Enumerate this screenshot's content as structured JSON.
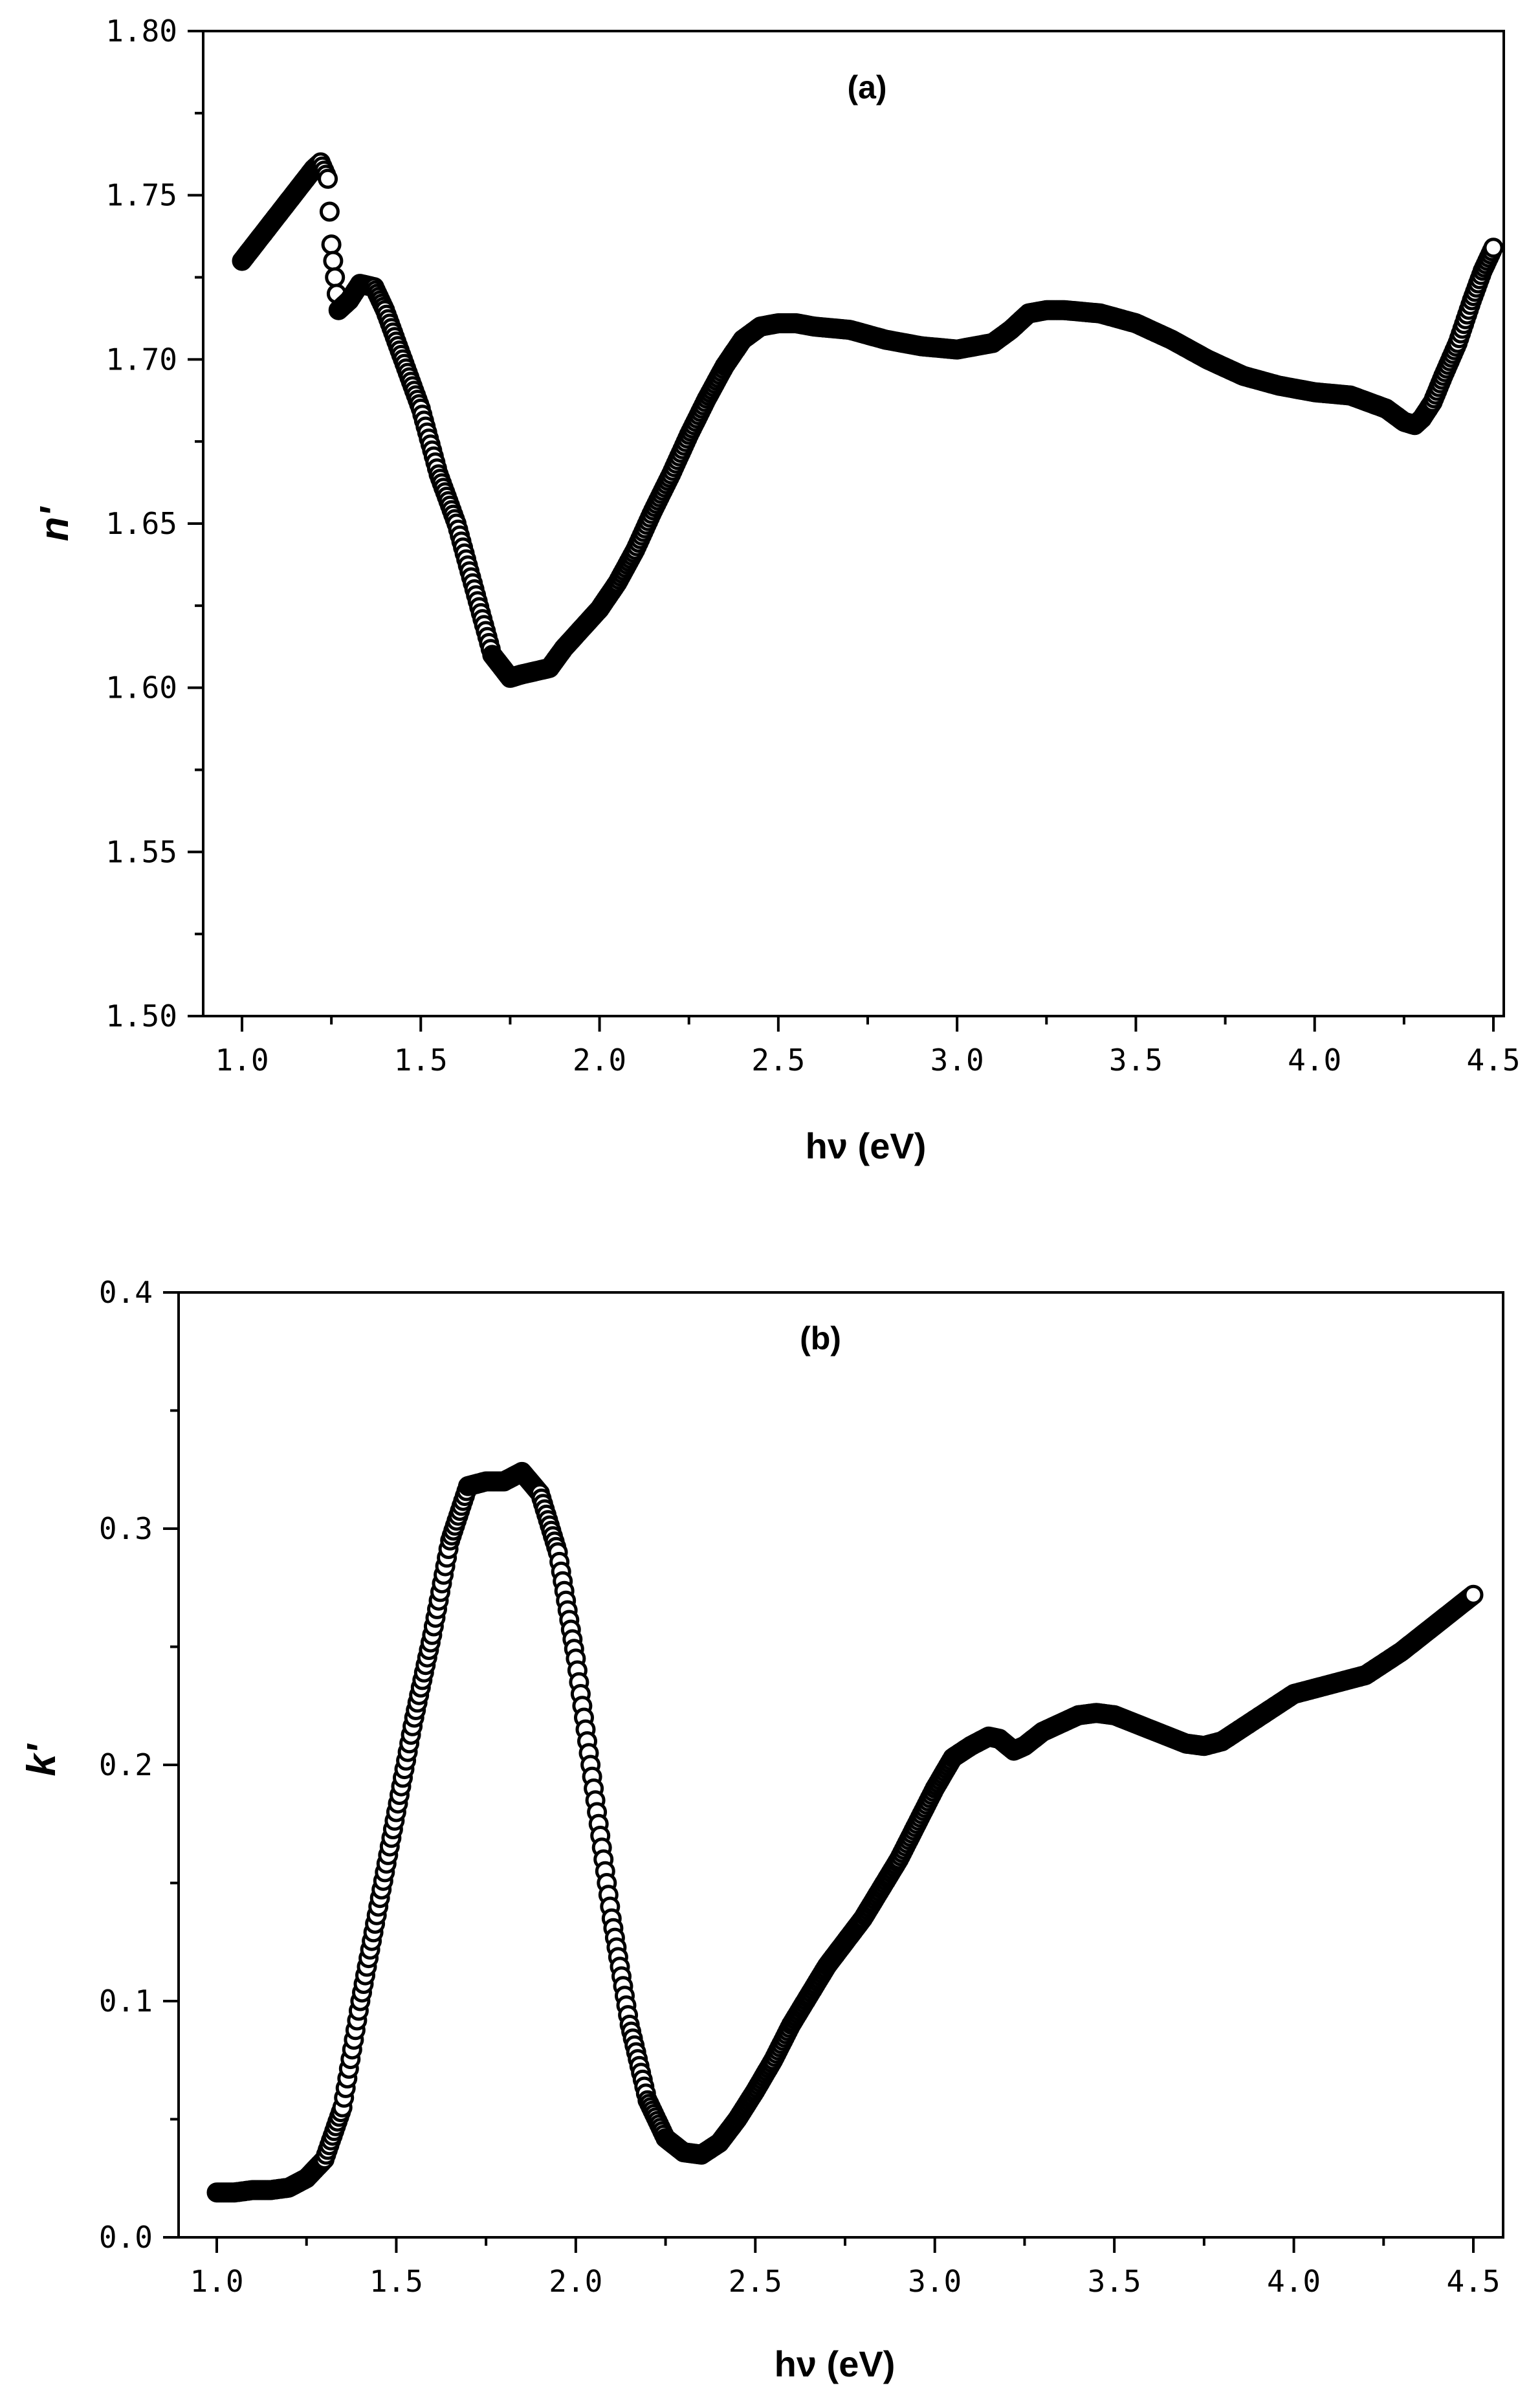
{
  "chart_data": [
    {
      "type": "scatter",
      "panel_label": "(a)",
      "xlabel": "hν (eV)",
      "ylabel": "n'",
      "xlim": [
        0.9,
        4.55
      ],
      "ylim": [
        1.5,
        1.8
      ],
      "xticks": [
        "1.0",
        "1.5",
        "2.0",
        "2.5",
        "3.0",
        "3.5",
        "4.0",
        "4.5"
      ],
      "yticks": [
        "1.50",
        "1.55",
        "1.60",
        "1.65",
        "1.70",
        "1.75",
        "1.80"
      ],
      "grid": false,
      "legend": "none",
      "x": [
        1.0,
        1.05,
        1.1,
        1.15,
        1.2,
        1.22,
        1.24,
        1.25,
        1.27,
        1.3,
        1.33,
        1.37,
        1.4,
        1.45,
        1.5,
        1.55,
        1.6,
        1.65,
        1.7,
        1.75,
        1.78,
        1.82,
        1.86,
        1.9,
        1.95,
        2.0,
        2.05,
        2.1,
        2.15,
        2.2,
        2.25,
        2.3,
        2.35,
        2.4,
        2.45,
        2.5,
        2.55,
        2.6,
        2.7,
        2.8,
        2.9,
        3.0,
        3.1,
        3.15,
        3.2,
        3.25,
        3.3,
        3.4,
        3.5,
        3.6,
        3.7,
        3.8,
        3.9,
        4.0,
        4.1,
        4.15,
        4.2,
        4.25,
        4.28,
        4.3,
        4.33,
        4.36,
        4.4,
        4.44,
        4.47,
        4.5
      ],
      "y": [
        1.73,
        1.737,
        1.744,
        1.751,
        1.758,
        1.76,
        1.755,
        1.735,
        1.715,
        1.718,
        1.723,
        1.722,
        1.715,
        1.7,
        1.685,
        1.665,
        1.65,
        1.63,
        1.61,
        1.603,
        1.604,
        1.605,
        1.606,
        1.612,
        1.618,
        1.624,
        1.632,
        1.642,
        1.654,
        1.665,
        1.677,
        1.688,
        1.698,
        1.706,
        1.71,
        1.711,
        1.711,
        1.71,
        1.709,
        1.706,
        1.704,
        1.703,
        1.705,
        1.709,
        1.714,
        1.715,
        1.715,
        1.714,
        1.711,
        1.706,
        1.7,
        1.695,
        1.692,
        1.69,
        1.689,
        1.687,
        1.685,
        1.681,
        1.68,
        1.682,
        1.687,
        1.695,
        1.705,
        1.718,
        1.727,
        1.734
      ]
    },
    {
      "type": "scatter",
      "panel_label": "(b)",
      "xlabel": "hν (eV)",
      "ylabel": "k'",
      "xlim": [
        0.9,
        4.55
      ],
      "ylim": [
        0.0,
        0.4
      ],
      "xticks": [
        "1.0",
        "1.5",
        "2.0",
        "2.5",
        "3.0",
        "3.5",
        "4.0",
        "4.5"
      ],
      "yticks": [
        "0.0",
        "0.1",
        "0.2",
        "0.3",
        "0.4"
      ],
      "grid": false,
      "legend": "none",
      "x": [
        1.0,
        1.05,
        1.1,
        1.15,
        1.2,
        1.25,
        1.3,
        1.35,
        1.4,
        1.45,
        1.5,
        1.55,
        1.6,
        1.65,
        1.7,
        1.75,
        1.8,
        1.85,
        1.9,
        1.95,
        2.0,
        2.05,
        2.1,
        2.15,
        2.2,
        2.25,
        2.3,
        2.35,
        2.4,
        2.45,
        2.5,
        2.55,
        2.6,
        2.7,
        2.8,
        2.9,
        3.0,
        3.05,
        3.1,
        3.15,
        3.18,
        3.22,
        3.25,
        3.3,
        3.4,
        3.45,
        3.5,
        3.6,
        3.7,
        3.75,
        3.8,
        3.9,
        4.0,
        4.1,
        4.2,
        4.3,
        4.4,
        4.5
      ],
      "y": [
        0.019,
        0.019,
        0.02,
        0.02,
        0.021,
        0.025,
        0.033,
        0.055,
        0.1,
        0.14,
        0.18,
        0.22,
        0.255,
        0.295,
        0.318,
        0.32,
        0.32,
        0.324,
        0.315,
        0.29,
        0.245,
        0.19,
        0.135,
        0.09,
        0.058,
        0.042,
        0.036,
        0.035,
        0.04,
        0.05,
        0.062,
        0.075,
        0.09,
        0.115,
        0.135,
        0.16,
        0.19,
        0.203,
        0.208,
        0.212,
        0.211,
        0.206,
        0.208,
        0.214,
        0.221,
        0.222,
        0.221,
        0.215,
        0.209,
        0.208,
        0.21,
        0.22,
        0.23,
        0.234,
        0.238,
        0.248,
        0.26,
        0.272
      ]
    }
  ]
}
